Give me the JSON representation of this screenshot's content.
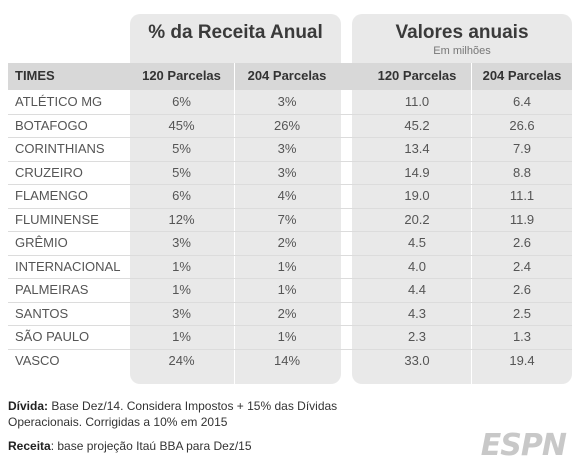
{
  "groups": {
    "pct_title": "% da Receita Anual",
    "val_title": "Valores anuais",
    "val_subtitle": "Em milhões"
  },
  "headers": {
    "times": "TIMES",
    "p120": "120 Parcelas",
    "p204": "204 Parcelas",
    "v120": "120 Parcelas",
    "v204": "204 Parcelas"
  },
  "rows": [
    {
      "team": "ATLÉTICO MG",
      "p120": "6%",
      "p204": "3%",
      "v120": "11.0",
      "v204": "6.4"
    },
    {
      "team": "BOTAFOGO",
      "p120": "45%",
      "p204": "26%",
      "v120": "45.2",
      "v204": "26.6"
    },
    {
      "team": "CORINTHIANS",
      "p120": "5%",
      "p204": "3%",
      "v120": "13.4",
      "v204": "7.9"
    },
    {
      "team": "CRUZEIRO",
      "p120": "5%",
      "p204": "3%",
      "v120": "14.9",
      "v204": "8.8"
    },
    {
      "team": "FLAMENGO",
      "p120": "6%",
      "p204": "4%",
      "v120": "19.0",
      "v204": "11.1"
    },
    {
      "team": "FLUMINENSE",
      "p120": "12%",
      "p204": "7%",
      "v120": "20.2",
      "v204": "11.9"
    },
    {
      "team": "GRÊMIO",
      "p120": "3%",
      "p204": "2%",
      "v120": "4.5",
      "v204": "2.6"
    },
    {
      "team": "INTERNACIONAL",
      "p120": "1%",
      "p204": "1%",
      "v120": "4.0",
      "v204": "2.4"
    },
    {
      "team": "PALMEIRAS",
      "p120": "1%",
      "p204": "1%",
      "v120": "4.4",
      "v204": "2.6"
    },
    {
      "team": "SANTOS",
      "p120": "3%",
      "p204": "2%",
      "v120": "4.3",
      "v204": "2.5"
    },
    {
      "team": "SÃO PAULO",
      "p120": "1%",
      "p204": "1%",
      "v120": "2.3",
      "v204": "1.3"
    },
    {
      "team": "VASCO",
      "p120": "24%",
      "p204": "14%",
      "v120": "33.0",
      "v204": "19.4"
    }
  ],
  "footnotes": {
    "divida_label": "Dívida:",
    "divida_text": "Base Dez/14. Considera Impostos + 15% das Dívidas Operacionais. Corrigidas a 10% em 2015",
    "receita_label": "Receita",
    "receita_text": ": base projeção Itaú BBA para Dez/15"
  },
  "logo": "ESPN"
}
